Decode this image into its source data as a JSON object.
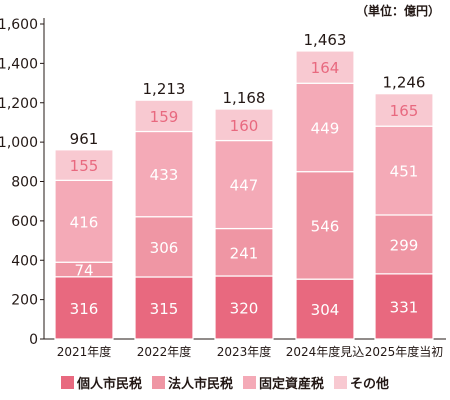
{
  "chart_data": {
    "type": "bar",
    "stacked": true,
    "unit_label": "（単位：億円）",
    "categories": [
      "2021年度",
      "2022年度",
      "2023年度",
      "2024年度見込",
      "2025年度当初"
    ],
    "series": [
      {
        "name": "個人市民税",
        "color": "#e8697f",
        "values": [
          316,
          315,
          320,
          304,
          331
        ]
      },
      {
        "name": "法人市民税",
        "color": "#ef96a4",
        "values": [
          74,
          306,
          241,
          546,
          299
        ]
      },
      {
        "name": "固定資産税",
        "color": "#f4aab7",
        "values": [
          416,
          433,
          447,
          449,
          451
        ]
      },
      {
        "name": "その他",
        "color": "#f8c9d1",
        "values": [
          155,
          159,
          160,
          164,
          165
        ]
      }
    ],
    "totals": [
      "961",
      "1,213",
      "1,168",
      "1,463",
      "1,246"
    ],
    "y_ticks": [
      "0",
      "200",
      "400",
      "600",
      "800",
      "1,000",
      "1,200",
      "1,400",
      "1,600"
    ],
    "ylim": [
      0,
      1600
    ],
    "grid": false,
    "legend_position": "bottom",
    "value_label_color": "#ffffff",
    "other_label_color": "#e8697f"
  }
}
